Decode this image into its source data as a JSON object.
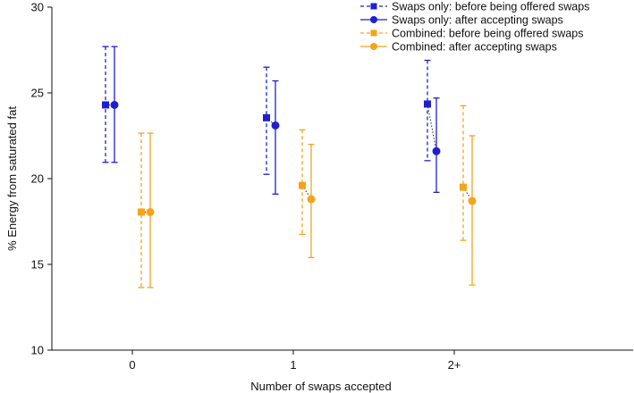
{
  "chart_data": {
    "type": "scatter",
    "xlabel": "Number of swaps accepted",
    "ylabel": "% Energy from saturated fat",
    "ylim": [
      10,
      30
    ],
    "yticks": [
      "10",
      "15",
      "20",
      "25",
      "30"
    ],
    "categories": [
      "0",
      "1",
      "2+"
    ],
    "legend_position": "top-right",
    "series": [
      {
        "name": "Swaps only: before being offered swaps",
        "color": "#1f1fd1",
        "line": "dashed",
        "marker": "square",
        "offset": -0.3,
        "values": [
          24.3,
          23.55,
          24.35
        ],
        "lower": [
          20.95,
          20.25,
          21.05
        ],
        "upper": [
          27.7,
          26.5,
          26.9
        ]
      },
      {
        "name": "Swaps only: after accepting swaps",
        "color": "#1f1fd1",
        "line": "solid",
        "marker": "circle",
        "offset": -0.2,
        "values": [
          24.3,
          23.1,
          21.6
        ],
        "lower": [
          20.95,
          19.1,
          19.2
        ],
        "upper": [
          27.7,
          25.7,
          24.7
        ]
      },
      {
        "name": "Combined: before being offered swaps",
        "color": "#f5a31a",
        "line": "dashed",
        "marker": "square",
        "offset": 0.1,
        "values": [
          18.05,
          19.6,
          19.5
        ],
        "lower": [
          13.65,
          16.75,
          16.4
        ],
        "upper": [
          22.65,
          22.85,
          24.25
        ]
      },
      {
        "name": "Combined: after accepting swaps",
        "color": "#f5a31a",
        "line": "solid",
        "marker": "circle",
        "offset": 0.2,
        "values": [
          18.05,
          18.8,
          18.7
        ],
        "lower": [
          13.65,
          15.4,
          13.8
        ],
        "upper": [
          22.65,
          22.0,
          22.5
        ]
      }
    ]
  }
}
